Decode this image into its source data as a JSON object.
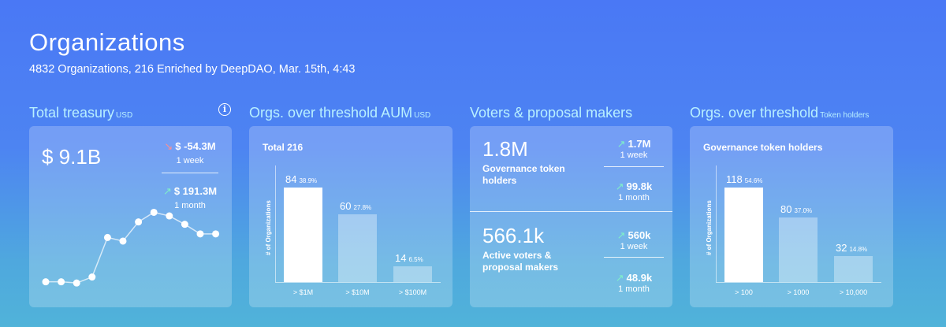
{
  "header": {
    "title": "Organizations",
    "subtitle": "4832 Organizations, 216 Enriched by DeepDAO, Mar. 15th, 4:43"
  },
  "treasury": {
    "title": "Total treasury",
    "unit": "USD",
    "value": "$ 9.1B",
    "week_change": "$ -54.3M",
    "week_label": "1 week",
    "month_change": "$ 191.3M",
    "month_label": "1 month",
    "sparkline": [
      0.18,
      0.18,
      0.17,
      0.22,
      0.55,
      0.52,
      0.68,
      0.76,
      0.73,
      0.66,
      0.58,
      0.58
    ]
  },
  "aum": {
    "title": "Orgs. over threshold AUM",
    "unit": "USD",
    "chart_title": "Total 216",
    "ylabel": "# of Organizations",
    "chart_data": {
      "type": "bar",
      "categories": [
        "> $1M",
        "> $10M",
        "> $100M"
      ],
      "values": [
        84,
        60,
        14
      ],
      "percents": [
        "38.9%",
        "27.8%",
        "6.5%"
      ],
      "ylabel": "# of Organizations",
      "title": "Total 216"
    }
  },
  "voters": {
    "title": "Voters & proposal makers",
    "holders_value": "1.8M",
    "holders_label": "Governance token holders",
    "holders_week": "1.7M",
    "holders_week_label": "1 week",
    "holders_month": "99.8k",
    "holders_month_label": "1 month",
    "active_value": "566.1k",
    "active_label": "Active voters & proposal makers",
    "active_week": "560k",
    "active_week_label": "1 week",
    "active_month": "48.9k",
    "active_month_label": "1 month"
  },
  "holders": {
    "title": "Orgs. over threshold",
    "unit": "Token holders",
    "chart_title": "Governance token holders",
    "ylabel": "# of Organizations",
    "chart_data": {
      "type": "bar",
      "categories": [
        "> 100",
        "> 1000",
        "> 10,000"
      ],
      "values": [
        118,
        80,
        32
      ],
      "percents": [
        "54.6%",
        "37.0%",
        "14.8%"
      ],
      "ylabel": "# of Organizations",
      "title": "Governance token holders"
    }
  },
  "colors": {
    "accent_text": "#b8f0ff",
    "up_arrow": "#7ff0c8",
    "down_arrow": "#ff8f8f"
  }
}
